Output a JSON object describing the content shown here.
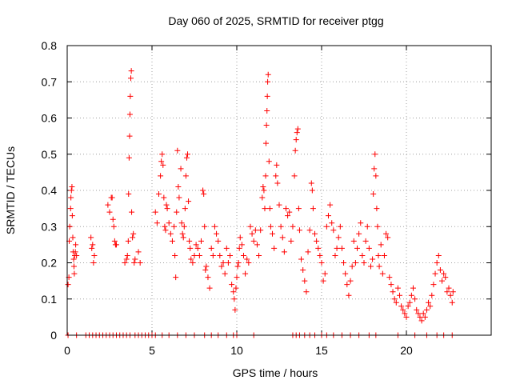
{
  "chart_data": {
    "type": "scatter",
    "title": "Day 060 of 2025, SRMTID for receiver ptgg",
    "xlabel": "GPS time / hours",
    "ylabel": "SRMTID / TECUs",
    "xlim": [
      0,
      25
    ],
    "ylim": [
      0,
      0.8
    ],
    "xticks": [
      0,
      5,
      10,
      15,
      20
    ],
    "xtick_labels": [
      "0",
      "5",
      "10",
      "15",
      "20"
    ],
    "yticks": [
      0,
      0.1,
      0.2,
      0.3,
      0.4,
      0.5,
      0.6,
      0.7,
      0.8
    ],
    "ytick_labels": [
      "0",
      "0.1",
      "0.2",
      "0.3",
      "0.4",
      "0.5",
      "0.6",
      "0.7",
      "0.8"
    ],
    "grid": true,
    "marker": "plus",
    "color": "#ff0000",
    "series": [
      {
        "name": "SRMTID",
        "points": [
          [
            0.05,
            0.14
          ],
          [
            0.1,
            0.16
          ],
          [
            0.12,
            0.26
          ],
          [
            0.15,
            0.3
          ],
          [
            0.2,
            0.35
          ],
          [
            0.22,
            0.38
          ],
          [
            0.25,
            0.4
          ],
          [
            0.28,
            0.41
          ],
          [
            0.3,
            0.33
          ],
          [
            0.33,
            0.27
          ],
          [
            0.35,
            0.23
          ],
          [
            0.38,
            0.21
          ],
          [
            0.4,
            0.19
          ],
          [
            0.42,
            0.17
          ],
          [
            0.45,
            0.22
          ],
          [
            0.48,
            0.23
          ],
          [
            0.5,
            0.25
          ],
          [
            0.55,
            0.22
          ],
          [
            1.4,
            0.27
          ],
          [
            1.45,
            0.24
          ],
          [
            1.5,
            0.25
          ],
          [
            1.55,
            0.2
          ],
          [
            1.6,
            0.22
          ],
          [
            2.4,
            0.36
          ],
          [
            2.5,
            0.34
          ],
          [
            2.6,
            0.38
          ],
          [
            2.65,
            0.38
          ],
          [
            2.7,
            0.32
          ],
          [
            2.75,
            0.3
          ],
          [
            2.8,
            0.26
          ],
          [
            2.85,
            0.25
          ],
          [
            2.9,
            0.25
          ],
          [
            3.4,
            0.2
          ],
          [
            3.5,
            0.21
          ],
          [
            3.55,
            0.22
          ],
          [
            3.6,
            0.26
          ],
          [
            3.62,
            0.39
          ],
          [
            3.65,
            0.49
          ],
          [
            3.68,
            0.55
          ],
          [
            3.7,
            0.61
          ],
          [
            3.72,
            0.66
          ],
          [
            3.75,
            0.71
          ],
          [
            3.78,
            0.73
          ],
          [
            3.8,
            0.34
          ],
          [
            3.85,
            0.27
          ],
          [
            3.9,
            0.28
          ],
          [
            3.95,
            0.2
          ],
          [
            4.0,
            0.21
          ],
          [
            4.2,
            0.23
          ],
          [
            4.3,
            0.2
          ],
          [
            5.2,
            0.34
          ],
          [
            5.3,
            0.31
          ],
          [
            5.4,
            0.39
          ],
          [
            5.5,
            0.44
          ],
          [
            5.55,
            0.48
          ],
          [
            5.6,
            0.5
          ],
          [
            5.65,
            0.47
          ],
          [
            5.7,
            0.38
          ],
          [
            5.75,
            0.3
          ],
          [
            5.8,
            0.29
          ],
          [
            5.85,
            0.36
          ],
          [
            5.9,
            0.35
          ],
          [
            6.0,
            0.31
          ],
          [
            6.1,
            0.28
          ],
          [
            6.2,
            0.26
          ],
          [
            6.3,
            0.3
          ],
          [
            6.35,
            0.22
          ],
          [
            6.4,
            0.16
          ],
          [
            6.45,
            0.34
          ],
          [
            6.5,
            0.51
          ],
          [
            6.55,
            0.41
          ],
          [
            6.6,
            0.38
          ],
          [
            6.7,
            0.46
          ],
          [
            6.75,
            0.31
          ],
          [
            6.8,
            0.28
          ],
          [
            6.85,
            0.27
          ],
          [
            6.9,
            0.3
          ],
          [
            6.95,
            0.35
          ],
          [
            7.0,
            0.44
          ],
          [
            7.05,
            0.49
          ],
          [
            7.1,
            0.5
          ],
          [
            7.15,
            0.37
          ],
          [
            7.2,
            0.26
          ],
          [
            7.25,
            0.24
          ],
          [
            7.3,
            0.21
          ],
          [
            7.4,
            0.2
          ],
          [
            7.5,
            0.22
          ],
          [
            7.6,
            0.25
          ],
          [
            7.7,
            0.24
          ],
          [
            7.8,
            0.22
          ],
          [
            7.9,
            0.26
          ],
          [
            8.0,
            0.4
          ],
          [
            8.05,
            0.39
          ],
          [
            8.1,
            0.3
          ],
          [
            8.15,
            0.18
          ],
          [
            8.2,
            0.19
          ],
          [
            8.3,
            0.16
          ],
          [
            8.4,
            0.13
          ],
          [
            8.5,
            0.24
          ],
          [
            8.6,
            0.22
          ],
          [
            8.7,
            0.3
          ],
          [
            8.8,
            0.28
          ],
          [
            8.9,
            0.26
          ],
          [
            9.0,
            0.22
          ],
          [
            9.1,
            0.19
          ],
          [
            9.2,
            0.2
          ],
          [
            9.3,
            0.17
          ],
          [
            9.4,
            0.24
          ],
          [
            9.5,
            0.2
          ],
          [
            9.6,
            0.22
          ],
          [
            9.7,
            0.14
          ],
          [
            9.8,
            0.12
          ],
          [
            9.85,
            0.1
          ],
          [
            9.9,
            0.07
          ],
          [
            9.95,
            0.13
          ],
          [
            10.0,
            0.16
          ],
          [
            10.05,
            0.19
          ],
          [
            10.1,
            0.2
          ],
          [
            10.15,
            0.24
          ],
          [
            10.2,
            0.27
          ],
          [
            10.3,
            0.25
          ],
          [
            10.4,
            0.22
          ],
          [
            10.5,
            0.17
          ],
          [
            10.6,
            0.21
          ],
          [
            10.7,
            0.2
          ],
          [
            10.8,
            0.3
          ],
          [
            10.9,
            0.28
          ],
          [
            11.0,
            0.26
          ],
          [
            11.1,
            0.29
          ],
          [
            11.2,
            0.25
          ],
          [
            11.3,
            0.22
          ],
          [
            11.4,
            0.29
          ],
          [
            11.5,
            0.38
          ],
          [
            11.55,
            0.41
          ],
          [
            11.6,
            0.4
          ],
          [
            11.65,
            0.35
          ],
          [
            11.7,
            0.44
          ],
          [
            11.72,
            0.53
          ],
          [
            11.75,
            0.58
          ],
          [
            11.78,
            0.62
          ],
          [
            11.8,
            0.66
          ],
          [
            11.82,
            0.7
          ],
          [
            11.85,
            0.72
          ],
          [
            11.9,
            0.48
          ],
          [
            11.95,
            0.35
          ],
          [
            12.0,
            0.3
          ],
          [
            12.1,
            0.28
          ],
          [
            12.2,
            0.24
          ],
          [
            12.3,
            0.44
          ],
          [
            12.35,
            0.47
          ],
          [
            12.4,
            0.42
          ],
          [
            12.5,
            0.36
          ],
          [
            12.6,
            0.3
          ],
          [
            12.7,
            0.27
          ],
          [
            12.8,
            0.23
          ],
          [
            12.9,
            0.35
          ],
          [
            13.0,
            0.33
          ],
          [
            13.1,
            0.34
          ],
          [
            13.2,
            0.26
          ],
          [
            13.3,
            0.3
          ],
          [
            13.4,
            0.44
          ],
          [
            13.45,
            0.51
          ],
          [
            13.5,
            0.54
          ],
          [
            13.55,
            0.56
          ],
          [
            13.6,
            0.57
          ],
          [
            13.65,
            0.35
          ],
          [
            13.7,
            0.29
          ],
          [
            13.8,
            0.21
          ],
          [
            13.9,
            0.18
          ],
          [
            14.0,
            0.15
          ],
          [
            14.1,
            0.12
          ],
          [
            14.2,
            0.23
          ],
          [
            14.3,
            0.29
          ],
          [
            14.4,
            0.42
          ],
          [
            14.45,
            0.4
          ],
          [
            14.5,
            0.35
          ],
          [
            14.6,
            0.28
          ],
          [
            14.7,
            0.26
          ],
          [
            14.8,
            0.24
          ],
          [
            14.9,
            0.22
          ],
          [
            15.0,
            0.2
          ],
          [
            15.1,
            0.15
          ],
          [
            15.2,
            0.17
          ],
          [
            15.3,
            0.3
          ],
          [
            15.4,
            0.33
          ],
          [
            15.5,
            0.36
          ],
          [
            15.6,
            0.31
          ],
          [
            15.7,
            0.29
          ],
          [
            15.8,
            0.22
          ],
          [
            15.9,
            0.24
          ],
          [
            16.0,
            0.27
          ],
          [
            16.1,
            0.3
          ],
          [
            16.2,
            0.24
          ],
          [
            16.3,
            0.2
          ],
          [
            16.4,
            0.17
          ],
          [
            16.5,
            0.14
          ],
          [
            16.6,
            0.11
          ],
          [
            16.7,
            0.15
          ],
          [
            16.8,
            0.19
          ],
          [
            16.9,
            0.26
          ],
          [
            17.0,
            0.2
          ],
          [
            17.1,
            0.24
          ],
          [
            17.2,
            0.28
          ],
          [
            17.3,
            0.31
          ],
          [
            17.4,
            0.22
          ],
          [
            17.5,
            0.2
          ],
          [
            17.6,
            0.26
          ],
          [
            17.7,
            0.3
          ],
          [
            17.8,
            0.24
          ],
          [
            17.9,
            0.19
          ],
          [
            18.0,
            0.21
          ],
          [
            18.05,
            0.39
          ],
          [
            18.1,
            0.46
          ],
          [
            18.15,
            0.5
          ],
          [
            18.2,
            0.44
          ],
          [
            18.25,
            0.35
          ],
          [
            18.3,
            0.3
          ],
          [
            18.35,
            0.22
          ],
          [
            18.4,
            0.19
          ],
          [
            18.5,
            0.25
          ],
          [
            18.6,
            0.17
          ],
          [
            18.7,
            0.22
          ],
          [
            18.8,
            0.28
          ],
          [
            18.9,
            0.27
          ],
          [
            19.0,
            0.16
          ],
          [
            19.1,
            0.14
          ],
          [
            19.2,
            0.12
          ],
          [
            19.3,
            0.1
          ],
          [
            19.4,
            0.09
          ],
          [
            19.5,
            0.13
          ],
          [
            19.6,
            0.11
          ],
          [
            19.7,
            0.08
          ],
          [
            19.8,
            0.07
          ],
          [
            19.9,
            0.06
          ],
          [
            20.0,
            0.05
          ],
          [
            20.1,
            0.08
          ],
          [
            20.2,
            0.09
          ],
          [
            20.3,
            0.11
          ],
          [
            20.4,
            0.13
          ],
          [
            20.5,
            0.1
          ],
          [
            20.6,
            0.07
          ],
          [
            20.7,
            0.06
          ],
          [
            20.8,
            0.05
          ],
          [
            20.9,
            0.04
          ],
          [
            21.0,
            0.06
          ],
          [
            21.1,
            0.05
          ],
          [
            21.2,
            0.07
          ],
          [
            21.3,
            0.09
          ],
          [
            21.4,
            0.08
          ],
          [
            21.5,
            0.11
          ],
          [
            21.6,
            0.14
          ],
          [
            21.7,
            0.17
          ],
          [
            21.8,
            0.2
          ],
          [
            21.9,
            0.22
          ],
          [
            22.0,
            0.18
          ],
          [
            22.1,
            0.15
          ],
          [
            22.2,
            0.17
          ],
          [
            22.3,
            0.16
          ],
          [
            22.4,
            0.12
          ],
          [
            22.5,
            0.13
          ],
          [
            22.6,
            0.11
          ],
          [
            22.7,
            0.09
          ],
          [
            22.75,
            0.12
          ],
          [
            0.05,
            0
          ],
          [
            0.55,
            0
          ],
          [
            1.1,
            0
          ],
          [
            1.3,
            0
          ],
          [
            1.5,
            0
          ],
          [
            1.7,
            0
          ],
          [
            1.9,
            0
          ],
          [
            2.1,
            0
          ],
          [
            2.3,
            0
          ],
          [
            2.5,
            0
          ],
          [
            2.7,
            0
          ],
          [
            2.9,
            0
          ],
          [
            3.1,
            0
          ],
          [
            3.3,
            0
          ],
          [
            3.5,
            0
          ],
          [
            3.7,
            0
          ],
          [
            4.0,
            0
          ],
          [
            4.2,
            0
          ],
          [
            4.4,
            0
          ],
          [
            4.6,
            0
          ],
          [
            4.8,
            0
          ],
          [
            5.0,
            0
          ],
          [
            5.2,
            0
          ],
          [
            5.6,
            0
          ],
          [
            6.0,
            0
          ],
          [
            6.5,
            0
          ],
          [
            7.0,
            0
          ],
          [
            7.5,
            0
          ],
          [
            8.1,
            0
          ],
          [
            8.5,
            0
          ],
          [
            8.9,
            0
          ],
          [
            9.4,
            0
          ],
          [
            9.8,
            0
          ],
          [
            10.0,
            0
          ],
          [
            11.0,
            0
          ],
          [
            13.3,
            0
          ],
          [
            13.5,
            0
          ],
          [
            13.7,
            0
          ],
          [
            14.0,
            0
          ],
          [
            14.3,
            0
          ],
          [
            14.6,
            0
          ],
          [
            15.0,
            0
          ],
          [
            15.3,
            0
          ],
          [
            15.7,
            0
          ],
          [
            16.2,
            0
          ],
          [
            16.7,
            0
          ],
          [
            17.2,
            0
          ],
          [
            17.8,
            0
          ],
          [
            18.2,
            0
          ],
          [
            19.5,
            0
          ],
          [
            20.5,
            0
          ],
          [
            21.2,
            0
          ],
          [
            21.8,
            0
          ],
          [
            22.2,
            0
          ],
          [
            22.7,
            0
          ]
        ]
      }
    ]
  }
}
